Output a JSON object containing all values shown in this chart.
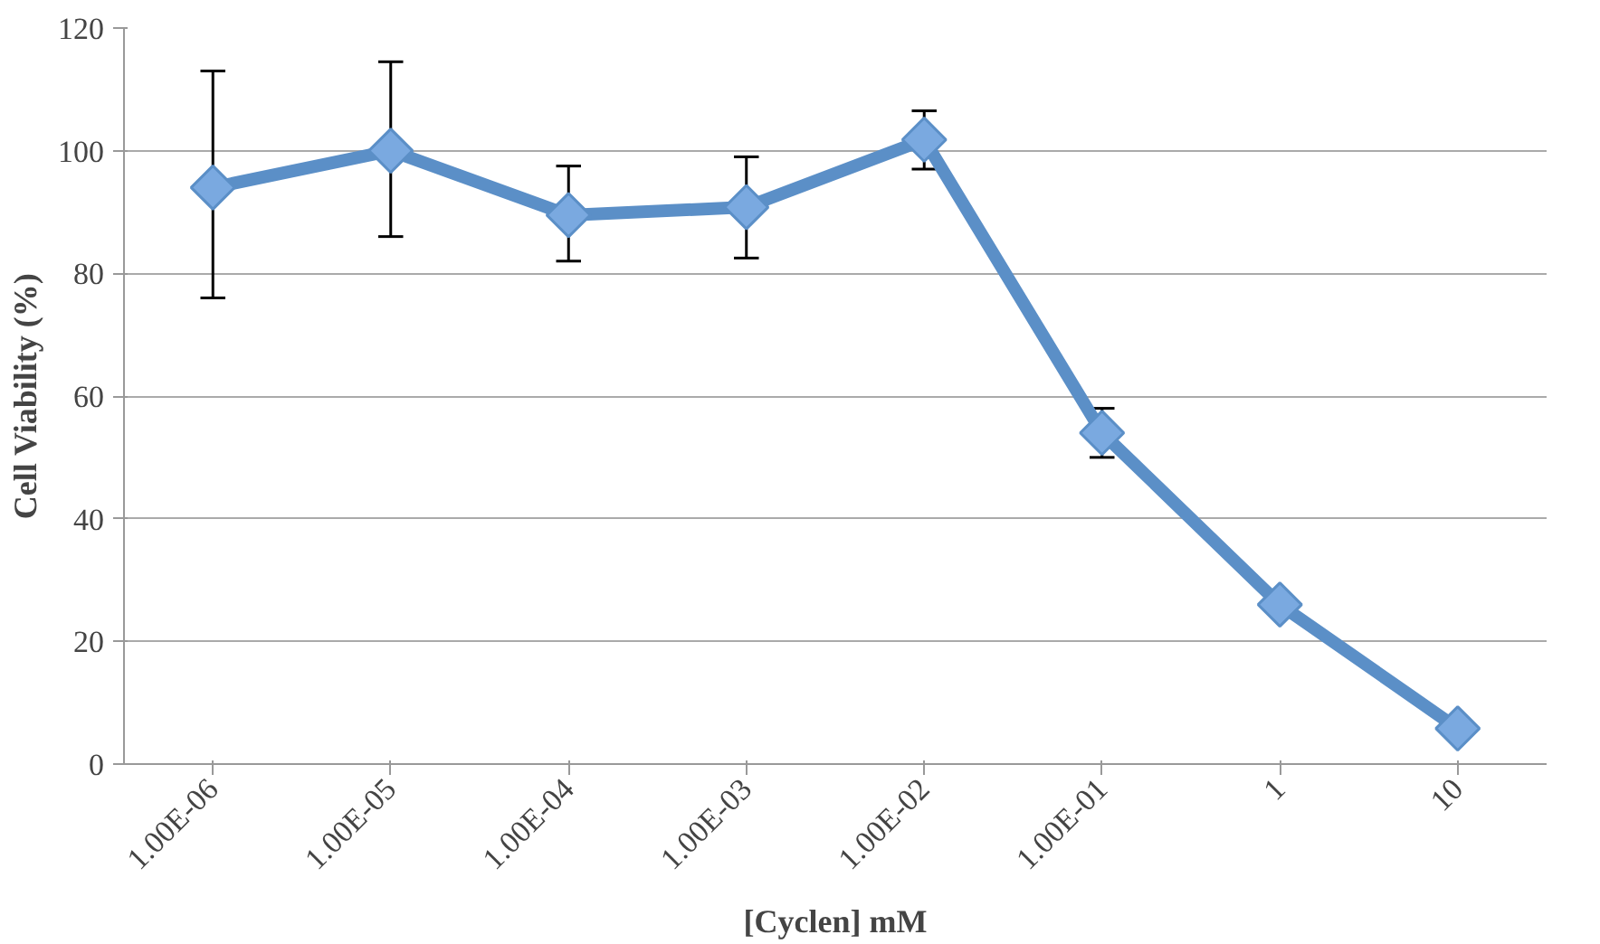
{
  "chart_data": {
    "type": "line",
    "xlabel": "[Cyclen] mM",
    "ylabel": "Cell Viability (%)",
    "categories": [
      "1.00E-06",
      "1.00E-05",
      "1.00E-04",
      "1.00E-03",
      "1.00E-02",
      "1.00E-01",
      "1",
      "10"
    ],
    "series": [
      {
        "color": "#5b8fc7",
        "values": [
          94,
          100,
          89.5,
          90.8,
          101.8,
          54,
          26,
          5.8
        ],
        "errors": [
          [
            76,
            113
          ],
          [
            86,
            114.5
          ],
          [
            82,
            97.5
          ],
          [
            82.5,
            99
          ],
          [
            97,
            106.5
          ],
          [
            50,
            58
          ],
          null,
          null
        ]
      }
    ],
    "ylim": [
      0,
      120
    ],
    "yticks": [
      0,
      20,
      40,
      60,
      80,
      100,
      120
    ],
    "grid": "y",
    "marker": "diamond",
    "line_style": "solid"
  }
}
